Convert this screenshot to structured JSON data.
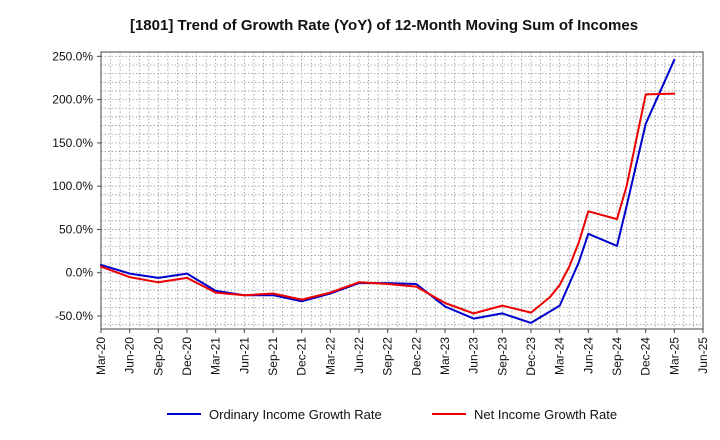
{
  "chart_data": {
    "type": "line",
    "title": "[1801]  Trend of Growth Rate (YoY) of 12-Month Moving Sum of Incomes",
    "xlabel": "",
    "ylabel": "",
    "ylim": [
      -65,
      255
    ],
    "yticks": [
      -50,
      0,
      50,
      100,
      150,
      200,
      250
    ],
    "ytick_labels": [
      "-50.0%",
      "0.0%",
      "50.0%",
      "100.0%",
      "150.0%",
      "200.0%",
      "250.0%"
    ],
    "x_tick_labels": [
      "Mar-20",
      "Jun-20",
      "Sep-20",
      "Dec-20",
      "Mar-21",
      "Jun-21",
      "Sep-21",
      "Dec-21",
      "Mar-22",
      "Jun-22",
      "Sep-22",
      "Dec-22",
      "Mar-23",
      "Jun-23",
      "Sep-23",
      "Dec-23",
      "Mar-24",
      "Jun-24",
      "Sep-24",
      "Dec-24",
      "Mar-25",
      "Jun-25"
    ],
    "x": [
      "Mar-20",
      "Apr-20",
      "May-20",
      "Jun-20",
      "Jul-20",
      "Aug-20",
      "Sep-20",
      "Oct-20",
      "Nov-20",
      "Dec-20",
      "Jan-21",
      "Feb-21",
      "Mar-21",
      "Apr-21",
      "May-21",
      "Jun-21",
      "Jul-21",
      "Aug-21",
      "Sep-21",
      "Oct-21",
      "Nov-21",
      "Dec-21",
      "Jan-22",
      "Feb-22",
      "Mar-22",
      "Apr-22",
      "May-22",
      "Jun-22",
      "Jul-22",
      "Aug-22",
      "Sep-22",
      "Oct-22",
      "Nov-22",
      "Dec-22",
      "Jan-23",
      "Feb-23",
      "Mar-23",
      "Apr-23",
      "May-23",
      "Jun-23",
      "Jul-23",
      "Aug-23",
      "Sep-23",
      "Oct-23",
      "Nov-23",
      "Dec-23",
      "Jan-24",
      "Feb-24",
      "Mar-24",
      "Apr-24",
      "May-24",
      "Jun-24",
      "Jul-24",
      "Aug-24",
      "Sep-24",
      "Oct-24",
      "Nov-24",
      "Dec-24",
      "Jan-25",
      "Feb-25",
      "Mar-25",
      "Apr-25",
      "May-25",
      "Jun-25"
    ],
    "grid": true,
    "legend_position": "bottom",
    "series": [
      {
        "name": "Ordinary Income Growth Rate",
        "color": "#0000cc",
        "points": [
          [
            "Mar-20",
            9
          ],
          [
            "Jun-20",
            -1
          ],
          [
            "Sep-20",
            -6
          ],
          [
            "Dec-20",
            -1
          ],
          [
            "Mar-21",
            -21
          ],
          [
            "Jun-21",
            -26
          ],
          [
            "Sep-21",
            -26
          ],
          [
            "Dec-21",
            -33
          ],
          [
            "Mar-22",
            -24
          ],
          [
            "Jun-22",
            -12
          ],
          [
            "Sep-22",
            -12
          ],
          [
            "Dec-22",
            -13
          ],
          [
            "Mar-23",
            -39
          ],
          [
            "Jun-23",
            -53
          ],
          [
            "Sep-23",
            -47
          ],
          [
            "Dec-23",
            -58
          ],
          [
            "Mar-24",
            -38
          ],
          [
            "May-24",
            12
          ],
          [
            "Jun-24",
            45
          ],
          [
            "Sep-24",
            31
          ],
          [
            "Oct-24",
            77
          ],
          [
            "Dec-24",
            172
          ],
          [
            "Mar-25",
            246
          ]
        ]
      },
      {
        "name": "Net Income Growth Rate",
        "color": "#ee0000",
        "points": [
          [
            "Mar-20",
            7
          ],
          [
            "Jun-20",
            -5
          ],
          [
            "Sep-20",
            -11
          ],
          [
            "Dec-20",
            -6
          ],
          [
            "Mar-21",
            -23
          ],
          [
            "Jun-21",
            -26
          ],
          [
            "Sep-21",
            -24
          ],
          [
            "Dec-21",
            -31
          ],
          [
            "Mar-22",
            -23
          ],
          [
            "Jun-22",
            -11
          ],
          [
            "Sep-22",
            -13
          ],
          [
            "Dec-22",
            -16
          ],
          [
            "Mar-23",
            -35
          ],
          [
            "Jun-23",
            -47
          ],
          [
            "Sep-23",
            -38
          ],
          [
            "Dec-23",
            -46
          ],
          [
            "Feb-24",
            -28
          ],
          [
            "Mar-24",
            -14
          ],
          [
            "Apr-24",
            7
          ],
          [
            "May-24",
            35
          ],
          [
            "Jun-24",
            71
          ],
          [
            "Sep-24",
            62
          ],
          [
            "Oct-24",
            100
          ],
          [
            "Dec-24",
            206
          ],
          [
            "Mar-25",
            207
          ]
        ]
      }
    ]
  }
}
